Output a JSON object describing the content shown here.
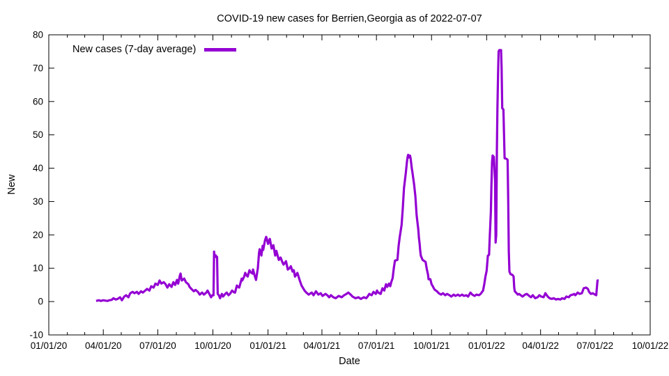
{
  "window": {
    "background": "#ffffff",
    "text_color": "#000000"
  },
  "chart_data": {
    "type": "line",
    "title": "COVID-19 new cases for Berrien,Georgia as of 2022-07-07",
    "xlabel": "Date",
    "ylabel": "New",
    "grid": false,
    "x_axis": {
      "unit": "date",
      "tick_labels": [
        "01/01/20",
        "04/01/20",
        "07/01/20",
        "10/01/20",
        "01/01/21",
        "04/01/21",
        "07/01/21",
        "10/01/21",
        "01/01/22",
        "04/01/22",
        "07/01/22",
        "10/01/22"
      ],
      "minor_ticks": "monthly",
      "range_days": [
        0,
        1004
      ]
    },
    "y_axis": {
      "ticks": [
        -10,
        0,
        10,
        20,
        30,
        40,
        50,
        60,
        70,
        80
      ],
      "range": [
        -10,
        80
      ]
    },
    "legend": {
      "position": "top-left",
      "entries": [
        {
          "label": "New cases (7-day average)",
          "color": "#9400d3"
        }
      ]
    },
    "series": [
      {
        "name": "New cases (7-day average)",
        "color": "#9400d3",
        "x_unit": "days since 2020-01-01",
        "points": [
          [
            79,
            0.2
          ],
          [
            84,
            0.4
          ],
          [
            87,
            0.2
          ],
          [
            91,
            0.4
          ],
          [
            94,
            0.3
          ],
          [
            98,
            0.2
          ],
          [
            101,
            0.4
          ],
          [
            105,
            0.5
          ],
          [
            108,
            1
          ],
          [
            112,
            0.6
          ],
          [
            115,
            0.8
          ],
          [
            119,
            1.3
          ],
          [
            122,
            0.4
          ],
          [
            126,
            1.5
          ],
          [
            129,
            1.9
          ],
          [
            133,
            1.3
          ],
          [
            136,
            2.5
          ],
          [
            140,
            2.9
          ],
          [
            143,
            2.5
          ],
          [
            147,
            2.9
          ],
          [
            150,
            2.3
          ],
          [
            154,
            3.1
          ],
          [
            157,
            2.7
          ],
          [
            161,
            3.3
          ],
          [
            164,
            3.8
          ],
          [
            168,
            3.3
          ],
          [
            171,
            4.6
          ],
          [
            175,
            4.2
          ],
          [
            178,
            5.4
          ],
          [
            182,
            5
          ],
          [
            185,
            6.3
          ],
          [
            188,
            5.4
          ],
          [
            192,
            5.8
          ],
          [
            195,
            5.2
          ],
          [
            198,
            4.2
          ],
          [
            201,
            5.2
          ],
          [
            205,
            4.4
          ],
          [
            208,
            5.8
          ],
          [
            211,
            5
          ],
          [
            214,
            6.5
          ],
          [
            216,
            5.4
          ],
          [
            219,
            7.9
          ],
          [
            220,
            8.4
          ],
          [
            222,
            6.3
          ],
          [
            226,
            6.9
          ],
          [
            229,
            5.8
          ],
          [
            233,
            5.2
          ],
          [
            235,
            4.4
          ],
          [
            238,
            3.8
          ],
          [
            242,
            3.1
          ],
          [
            245,
            3.5
          ],
          [
            249,
            2.9
          ],
          [
            252,
            2.1
          ],
          [
            256,
            2.7
          ],
          [
            259,
            2.1
          ],
          [
            263,
            2.7
          ],
          [
            265,
            3.3
          ],
          [
            268,
            2.3
          ],
          [
            271,
            1.3
          ],
          [
            273,
            1.9
          ],
          [
            275,
            1.9
          ],
          [
            276,
            15
          ],
          [
            277,
            13.5
          ],
          [
            279,
            13.8
          ],
          [
            280,
            13.2
          ],
          [
            281,
            13.4
          ],
          [
            282,
            2.3
          ],
          [
            284,
            1.9
          ],
          [
            286,
            1
          ],
          [
            289,
            2.3
          ],
          [
            291,
            1.5
          ],
          [
            294,
            2.2
          ],
          [
            297,
            2.7
          ],
          [
            300,
            1.9
          ],
          [
            303,
            2.4
          ],
          [
            306,
            3.3
          ],
          [
            309,
            2.8
          ],
          [
            311,
            2.7
          ],
          [
            314,
            4.8
          ],
          [
            316,
            4.4
          ],
          [
            318,
            4.2
          ],
          [
            322,
            6.9
          ],
          [
            323,
            6.3
          ],
          [
            326,
            7.4
          ],
          [
            328,
            8.6
          ],
          [
            330,
            7.9
          ],
          [
            332,
            7.5
          ],
          [
            335,
            9.4
          ],
          [
            337,
            8.8
          ],
          [
            340,
            8.4
          ],
          [
            341,
            9.6
          ],
          [
            343,
            8.2
          ],
          [
            346,
            6.5
          ],
          [
            349,
            10
          ],
          [
            351,
            14.6
          ],
          [
            352,
            15.7
          ],
          [
            355,
            13.8
          ],
          [
            357,
            16.7
          ],
          [
            358,
            15.5
          ],
          [
            361,
            18.4
          ],
          [
            363,
            19.4
          ],
          [
            364,
            18.8
          ],
          [
            366,
            17.3
          ],
          [
            369,
            18.8
          ],
          [
            372,
            15.9
          ],
          [
            375,
            16.9
          ],
          [
            378,
            13.8
          ],
          [
            380,
            15.2
          ],
          [
            384,
            12.5
          ],
          [
            387,
            13.2
          ],
          [
            390,
            11.8
          ],
          [
            392,
            11.1
          ],
          [
            396,
            12.1
          ],
          [
            399,
            9.6
          ],
          [
            402,
            10
          ],
          [
            404,
            10.6
          ],
          [
            407,
            9
          ],
          [
            409,
            9.4
          ],
          [
            411,
            7.5
          ],
          [
            415,
            8.6
          ],
          [
            419,
            6.3
          ],
          [
            422,
            4.8
          ],
          [
            427,
            3.3
          ],
          [
            430,
            2.7
          ],
          [
            434,
            2.1
          ],
          [
            439,
            2.7
          ],
          [
            442,
            1.9
          ],
          [
            446,
            3.1
          ],
          [
            450,
            2.1
          ],
          [
            454,
            2.5
          ],
          [
            457,
            1.7
          ],
          [
            462,
            2.3
          ],
          [
            465,
            1.9
          ],
          [
            468,
            1.3
          ],
          [
            471,
            1.9
          ],
          [
            475,
            1.3
          ],
          [
            479,
            1
          ],
          [
            484,
            1.7
          ],
          [
            489,
            1.3
          ],
          [
            493,
            1.9
          ],
          [
            497,
            2.3
          ],
          [
            500,
            2.7
          ],
          [
            504,
            2.1
          ],
          [
            507,
            1.5
          ],
          [
            512,
            1
          ],
          [
            517,
            1.3
          ],
          [
            521,
            0.8
          ],
          [
            526,
            1.3
          ],
          [
            530,
            1
          ],
          [
            533,
            1.7
          ],
          [
            535,
            2.3
          ],
          [
            539,
            1.9
          ],
          [
            542,
            2.9
          ],
          [
            546,
            2.3
          ],
          [
            548,
            3.3
          ],
          [
            550,
            2.7
          ],
          [
            554,
            2.3
          ],
          [
            557,
            4
          ],
          [
            560,
            3.3
          ],
          [
            563,
            5.2
          ],
          [
            565,
            4.4
          ],
          [
            568,
            5.4
          ],
          [
            570,
            4.6
          ],
          [
            572,
            6
          ],
          [
            574,
            7
          ],
          [
            576,
            10
          ],
          [
            578,
            12.3
          ],
          [
            582,
            12.5
          ],
          [
            584,
            16.7
          ],
          [
            586,
            19.5
          ],
          [
            589,
            23
          ],
          [
            591,
            28
          ],
          [
            593,
            34
          ],
          [
            596,
            38.5
          ],
          [
            598,
            42
          ],
          [
            599,
            43.4
          ],
          [
            600,
            44
          ],
          [
            601,
            43.2
          ],
          [
            603,
            43.8
          ],
          [
            604,
            43
          ],
          [
            606,
            40
          ],
          [
            607,
            38.8
          ],
          [
            610,
            35
          ],
          [
            612,
            31.5
          ],
          [
            614,
            26
          ],
          [
            617,
            21.5
          ],
          [
            618,
            19
          ],
          [
            619,
            17.5
          ],
          [
            620,
            15.5
          ],
          [
            621,
            13.8
          ],
          [
            624,
            12.5
          ],
          [
            629,
            11.9
          ],
          [
            631,
            9.8
          ],
          [
            633,
            8.2
          ],
          [
            634,
            6.7
          ],
          [
            637,
            6.7
          ],
          [
            639,
            5.2
          ],
          [
            641,
            4.6
          ],
          [
            644,
            3.6
          ],
          [
            648,
            3.1
          ],
          [
            651,
            2.5
          ],
          [
            655,
            2.1
          ],
          [
            658,
            2.5
          ],
          [
            662,
            1.9
          ],
          [
            665,
            2.3
          ],
          [
            669,
            1.9
          ],
          [
            672,
            1.5
          ],
          [
            676,
            2.1
          ],
          [
            679,
            1.7
          ],
          [
            683,
            2.1
          ],
          [
            686,
            1.7
          ],
          [
            690,
            2.1
          ],
          [
            693,
            1.7
          ],
          [
            697,
            1.9
          ],
          [
            700,
            1.5
          ],
          [
            704,
            2.7
          ],
          [
            707,
            2.1
          ],
          [
            711,
            1.7
          ],
          [
            714,
            2.1
          ],
          [
            718,
            1.9
          ],
          [
            721,
            2.3
          ],
          [
            725,
            3.3
          ],
          [
            727,
            5.2
          ],
          [
            729,
            7.5
          ],
          [
            731,
            9.2
          ],
          [
            733,
            13.8
          ],
          [
            735,
            14
          ],
          [
            736,
            18.4
          ],
          [
            738,
            27
          ],
          [
            739,
            35
          ],
          [
            740,
            42
          ],
          [
            741,
            43.8
          ],
          [
            743,
            43.4
          ],
          [
            745,
            36
          ],
          [
            746,
            17.7
          ],
          [
            747,
            20
          ],
          [
            748,
            45
          ],
          [
            749,
            58
          ],
          [
            750,
            68
          ],
          [
            751,
            75
          ],
          [
            752,
            75.4
          ],
          [
            755,
            75.4
          ],
          [
            756,
            70
          ],
          [
            757,
            58
          ],
          [
            759,
            57.6
          ],
          [
            761,
            43
          ],
          [
            764,
            42.8
          ],
          [
            766,
            42.5
          ],
          [
            767,
            30
          ],
          [
            768,
            15.2
          ],
          [
            769,
            9
          ],
          [
            771,
            8.2
          ],
          [
            774,
            8
          ],
          [
            776,
            7.5
          ],
          [
            777,
            4.2
          ],
          [
            778,
            3.1
          ],
          [
            781,
            2.5
          ],
          [
            783,
            2.1
          ],
          [
            785,
            2.3
          ],
          [
            788,
            1.9
          ],
          [
            791,
            1.5
          ],
          [
            795,
            2.1
          ],
          [
            798,
            2.3
          ],
          [
            802,
            1.7
          ],
          [
            805,
            1.3
          ],
          [
            808,
            1.9
          ],
          [
            812,
            1
          ],
          [
            816,
            1.3
          ],
          [
            819,
            1.9
          ],
          [
            822,
            1.5
          ],
          [
            826,
            1.3
          ],
          [
            829,
            2.5
          ],
          [
            833,
            1.5
          ],
          [
            836,
            1
          ],
          [
            840,
            0.8
          ],
          [
            843,
            1
          ],
          [
            847,
            0.6
          ],
          [
            850,
            0.8
          ],
          [
            854,
            0.6
          ],
          [
            857,
            1
          ],
          [
            861,
            0.8
          ],
          [
            864,
            1.5
          ],
          [
            868,
            1.3
          ],
          [
            871,
            1.9
          ],
          [
            875,
            2.1
          ],
          [
            877,
            2.3
          ],
          [
            879,
            1.9
          ],
          [
            883,
            2.7
          ],
          [
            886,
            2.3
          ],
          [
            890,
            2.5
          ],
          [
            893,
            4
          ],
          [
            897,
            4.2
          ],
          [
            900,
            3.8
          ],
          [
            902,
            2.9
          ],
          [
            905,
            2.3
          ],
          [
            908,
            2.5
          ],
          [
            912,
            2.1
          ],
          [
            914,
            1.9
          ],
          [
            916,
            6.3
          ],
          [
            918,
            6.3
          ]
        ]
      }
    ]
  }
}
